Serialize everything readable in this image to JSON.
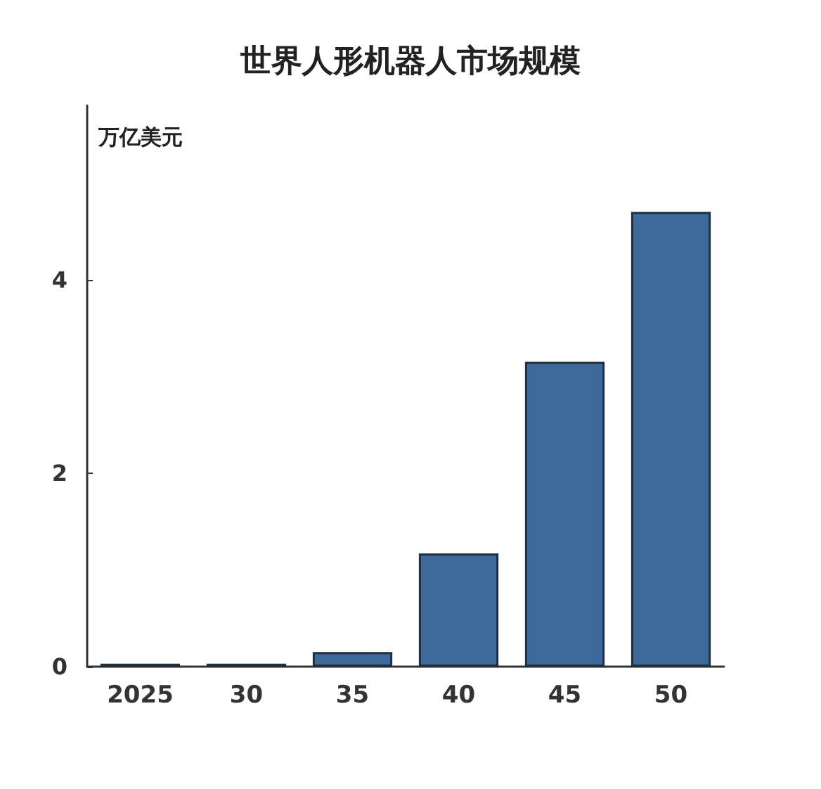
{
  "chart_data": {
    "type": "bar",
    "title": "世界人形机器人市场规模",
    "ylabel": "万亿美元",
    "categories": [
      "2025",
      "30",
      "35",
      "40",
      "45",
      "50"
    ],
    "values": [
      0.03,
      0.03,
      0.15,
      1.17,
      3.15,
      4.7
    ],
    "color": "#3d6a9a",
    "ylim": [
      0,
      5.8
    ],
    "yticks": [
      0,
      2,
      4
    ],
    "grid": false
  }
}
